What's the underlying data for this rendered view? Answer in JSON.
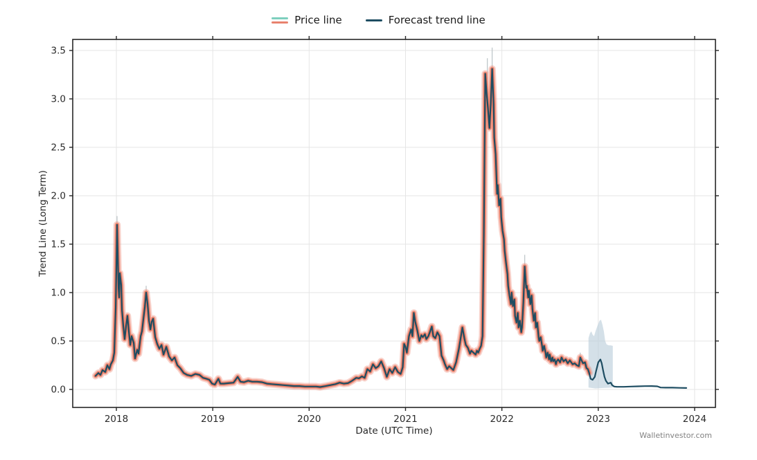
{
  "legend": {
    "items": [
      {
        "label": "Price line",
        "colors": [
          "#7dcfbe",
          "#e8826e"
        ]
      },
      {
        "label": "Forecast trend line",
        "colors": [
          "#1e4d62"
        ]
      }
    ]
  },
  "watermark": "Walletinvestor.com",
  "colors": {
    "price_halo": "#ec8a76",
    "price_core": "#e87a62",
    "trend": "#1e4d62",
    "band_fill": "#b8cbd8",
    "wick": "#bfc7ca",
    "grid": "#e5e5e5",
    "frame": "#262626",
    "tick_text": "#2a2a2a"
  },
  "chart_data": {
    "type": "line",
    "title": "",
    "xlabel": "Date (UTC Time)",
    "ylabel": "Trend Line (Long Term)",
    "xlim": [
      2017.547,
      2024.216
    ],
    "ylim": [
      -0.186,
      3.614
    ],
    "grid": true,
    "legend_position": "top-center",
    "x_tick_values": [
      2018,
      2019,
      2020,
      2021,
      2022,
      2023,
      2024
    ],
    "x_tick_labels": [
      "2018",
      "2019",
      "2020",
      "2021",
      "2022",
      "2023",
      "2024"
    ],
    "y_tick_values": [
      0.0,
      0.5,
      1.0,
      1.5,
      2.0,
      2.5,
      3.0,
      3.5
    ],
    "y_tick_labels": [
      "0.0",
      "0.5",
      "1.0",
      "1.5",
      "2.0",
      "2.5",
      "3.0",
      "3.5"
    ],
    "series": [
      {
        "name": "Price line",
        "color": "#e87a62",
        "points": [
          [
            2017.784,
            0.14
          ],
          [
            2017.813,
            0.17
          ],
          [
            2017.835,
            0.15
          ],
          [
            2017.856,
            0.2
          ],
          [
            2017.885,
            0.18
          ],
          [
            2017.906,
            0.25
          ],
          [
            2017.928,
            0.21
          ],
          [
            2017.942,
            0.26
          ],
          [
            2017.964,
            0.3
          ],
          [
            2017.978,
            0.38
          ],
          [
            2017.993,
            0.85
          ],
          [
            2018.007,
            1.7
          ],
          [
            2018.014,
            1.4
          ],
          [
            2018.022,
            1.05
          ],
          [
            2018.029,
            0.95
          ],
          [
            2018.036,
            1.2
          ],
          [
            2018.05,
            1.08
          ],
          [
            2018.058,
            0.82
          ],
          [
            2018.072,
            0.65
          ],
          [
            2018.086,
            0.52
          ],
          [
            2018.101,
            0.66
          ],
          [
            2018.115,
            0.76
          ],
          [
            2018.129,
            0.6
          ],
          [
            2018.144,
            0.46
          ],
          [
            2018.158,
            0.55
          ],
          [
            2018.18,
            0.48
          ],
          [
            2018.194,
            0.32
          ],
          [
            2018.216,
            0.41
          ],
          [
            2018.23,
            0.37
          ],
          [
            2018.252,
            0.55
          ],
          [
            2018.266,
            0.6
          ],
          [
            2018.281,
            0.73
          ],
          [
            2018.295,
            0.85
          ],
          [
            2018.309,
            1.0
          ],
          [
            2018.324,
            0.88
          ],
          [
            2018.338,
            0.71
          ],
          [
            2018.353,
            0.62
          ],
          [
            2018.367,
            0.7
          ],
          [
            2018.381,
            0.73
          ],
          [
            2018.403,
            0.54
          ],
          [
            2018.424,
            0.47
          ],
          [
            2018.446,
            0.42
          ],
          [
            2018.468,
            0.46
          ],
          [
            2018.489,
            0.36
          ],
          [
            2018.518,
            0.44
          ],
          [
            2018.547,
            0.34
          ],
          [
            2018.576,
            0.3
          ],
          [
            2018.604,
            0.33
          ],
          [
            2018.633,
            0.25
          ],
          [
            2018.662,
            0.22
          ],
          [
            2018.698,
            0.17
          ],
          [
            2018.734,
            0.15
          ],
          [
            2018.777,
            0.14
          ],
          [
            2018.82,
            0.16
          ],
          [
            2018.863,
            0.15
          ],
          [
            2018.899,
            0.12
          ],
          [
            2018.935,
            0.11
          ],
          [
            2018.964,
            0.1
          ],
          [
            2018.993,
            0.06
          ],
          [
            2019.022,
            0.05
          ],
          [
            2019.058,
            0.11
          ],
          [
            2019.079,
            0.06
          ],
          [
            2019.115,
            0.06
          ],
          [
            2019.165,
            0.065
          ],
          [
            2019.216,
            0.07
          ],
          [
            2019.259,
            0.13
          ],
          [
            2019.288,
            0.08
          ],
          [
            2019.324,
            0.075
          ],
          [
            2019.367,
            0.09
          ],
          [
            2019.41,
            0.08
          ],
          [
            2019.46,
            0.08
          ],
          [
            2019.511,
            0.075
          ],
          [
            2019.561,
            0.06
          ],
          [
            2019.612,
            0.055
          ],
          [
            2019.669,
            0.05
          ],
          [
            2019.727,
            0.045
          ],
          [
            2019.784,
            0.04
          ],
          [
            2019.842,
            0.035
          ],
          [
            2019.899,
            0.035
          ],
          [
            2019.957,
            0.03
          ],
          [
            2020.014,
            0.03
          ],
          [
            2020.072,
            0.03
          ],
          [
            2020.115,
            0.025
          ],
          [
            2020.173,
            0.035
          ],
          [
            2020.223,
            0.045
          ],
          [
            2020.273,
            0.055
          ],
          [
            2020.317,
            0.07
          ],
          [
            2020.36,
            0.06
          ],
          [
            2020.403,
            0.065
          ],
          [
            2020.446,
            0.09
          ],
          [
            2020.489,
            0.12
          ],
          [
            2020.518,
            0.115
          ],
          [
            2020.547,
            0.135
          ],
          [
            2020.576,
            0.12
          ],
          [
            2020.604,
            0.21
          ],
          [
            2020.633,
            0.185
          ],
          [
            2020.662,
            0.26
          ],
          [
            2020.691,
            0.22
          ],
          [
            2020.719,
            0.24
          ],
          [
            2020.748,
            0.29
          ],
          [
            2020.777,
            0.22
          ],
          [
            2020.806,
            0.13
          ],
          [
            2020.835,
            0.21
          ],
          [
            2020.863,
            0.17
          ],
          [
            2020.892,
            0.23
          ],
          [
            2020.921,
            0.18
          ],
          [
            2020.95,
            0.16
          ],
          [
            2020.971,
            0.23
          ],
          [
            2020.986,
            0.47
          ],
          [
            2021.0,
            0.44
          ],
          [
            2021.014,
            0.38
          ],
          [
            2021.036,
            0.55
          ],
          [
            2021.058,
            0.62
          ],
          [
            2021.072,
            0.55
          ],
          [
            2021.086,
            0.79
          ],
          [
            2021.101,
            0.7
          ],
          [
            2021.122,
            0.61
          ],
          [
            2021.144,
            0.5
          ],
          [
            2021.165,
            0.56
          ],
          [
            2021.18,
            0.54
          ],
          [
            2021.201,
            0.57
          ],
          [
            2021.216,
            0.52
          ],
          [
            2021.237,
            0.55
          ],
          [
            2021.252,
            0.59
          ],
          [
            2021.273,
            0.65
          ],
          [
            2021.288,
            0.55
          ],
          [
            2021.309,
            0.53
          ],
          [
            2021.331,
            0.59
          ],
          [
            2021.353,
            0.55
          ],
          [
            2021.374,
            0.35
          ],
          [
            2021.396,
            0.3
          ],
          [
            2021.41,
            0.26
          ],
          [
            2021.432,
            0.21
          ],
          [
            2021.453,
            0.24
          ],
          [
            2021.475,
            0.22
          ],
          [
            2021.496,
            0.2
          ],
          [
            2021.525,
            0.28
          ],
          [
            2021.554,
            0.42
          ],
          [
            2021.576,
            0.55
          ],
          [
            2021.59,
            0.64
          ],
          [
            2021.612,
            0.52
          ],
          [
            2021.626,
            0.46
          ],
          [
            2021.647,
            0.43
          ],
          [
            2021.669,
            0.37
          ],
          [
            2021.683,
            0.4
          ],
          [
            2021.705,
            0.38
          ],
          [
            2021.727,
            0.36
          ],
          [
            2021.741,
            0.4
          ],
          [
            2021.755,
            0.38
          ],
          [
            2021.77,
            0.42
          ],
          [
            2021.784,
            0.45
          ],
          [
            2021.799,
            0.55
          ],
          [
            2021.813,
            1.6
          ],
          [
            2021.827,
            3.26
          ],
          [
            2021.842,
            3.05
          ],
          [
            2021.856,
            2.9
          ],
          [
            2021.871,
            2.7
          ],
          [
            2021.885,
            2.95
          ],
          [
            2021.899,
            3.31
          ],
          [
            2021.914,
            2.95
          ],
          [
            2021.921,
            2.6
          ],
          [
            2021.935,
            2.43
          ],
          [
            2021.95,
            2.02
          ],
          [
            2021.957,
            2.11
          ],
          [
            2021.971,
            1.9
          ],
          [
            2021.986,
            1.97
          ],
          [
            2021.993,
            1.78
          ],
          [
            2022.007,
            1.64
          ],
          [
            2022.022,
            1.55
          ],
          [
            2022.029,
            1.43
          ],
          [
            2022.043,
            1.31
          ],
          [
            2022.058,
            1.19
          ],
          [
            2022.065,
            1.07
          ],
          [
            2022.079,
            0.97
          ],
          [
            2022.094,
            0.88
          ],
          [
            2022.101,
            1.0
          ],
          [
            2022.115,
            0.86
          ],
          [
            2022.13,
            0.93
          ],
          [
            2022.137,
            0.76
          ],
          [
            2022.151,
            0.69
          ],
          [
            2022.165,
            0.79
          ],
          [
            2022.173,
            0.64
          ],
          [
            2022.187,
            0.71
          ],
          [
            2022.201,
            0.59
          ],
          [
            2022.209,
            0.64
          ],
          [
            2022.223,
            0.9
          ],
          [
            2022.237,
            1.27
          ],
          [
            2022.252,
            1.05
          ],
          [
            2022.259,
            1.07
          ],
          [
            2022.273,
            0.95
          ],
          [
            2022.281,
            1.02
          ],
          [
            2022.295,
            0.88
          ],
          [
            2022.309,
            0.97
          ],
          [
            2022.317,
            0.83
          ],
          [
            2022.331,
            0.71
          ],
          [
            2022.345,
            0.79
          ],
          [
            2022.353,
            0.64
          ],
          [
            2022.367,
            0.69
          ],
          [
            2022.381,
            0.54
          ],
          [
            2022.388,
            0.5
          ],
          [
            2022.403,
            0.54
          ],
          [
            2022.417,
            0.45
          ],
          [
            2022.424,
            0.4
          ],
          [
            2022.438,
            0.45
          ],
          [
            2022.453,
            0.38
          ],
          [
            2022.46,
            0.33
          ],
          [
            2022.475,
            0.38
          ],
          [
            2022.489,
            0.31
          ],
          [
            2022.496,
            0.36
          ],
          [
            2022.511,
            0.29
          ],
          [
            2022.525,
            0.33
          ],
          [
            2022.532,
            0.29
          ],
          [
            2022.547,
            0.31
          ],
          [
            2022.561,
            0.26
          ],
          [
            2022.568,
            0.29
          ],
          [
            2022.583,
            0.31
          ],
          [
            2022.604,
            0.28
          ],
          [
            2022.619,
            0.33
          ],
          [
            2022.64,
            0.29
          ],
          [
            2022.662,
            0.31
          ],
          [
            2022.683,
            0.27
          ],
          [
            2022.705,
            0.3
          ],
          [
            2022.734,
            0.26
          ],
          [
            2022.755,
            0.27
          ],
          [
            2022.777,
            0.25
          ],
          [
            2022.799,
            0.24
          ],
          [
            2022.813,
            0.33
          ],
          [
            2022.827,
            0.3
          ],
          [
            2022.842,
            0.27
          ],
          [
            2022.863,
            0.28
          ],
          [
            2022.878,
            0.22
          ],
          [
            2022.892,
            0.21
          ],
          [
            2022.906,
            0.17
          ]
        ]
      },
      {
        "name": "Forecast trend line",
        "color": "#1e4d62",
        "note": "trend line overlays the full price history, then continues as forecast",
        "points": [
          [
            2022.906,
            0.17
          ],
          [
            2022.921,
            0.11
          ],
          [
            2022.942,
            0.1
          ],
          [
            2022.964,
            0.13
          ],
          [
            2022.978,
            0.19
          ],
          [
            2023.0,
            0.28
          ],
          [
            2023.022,
            0.31
          ],
          [
            2023.036,
            0.27
          ],
          [
            2023.05,
            0.2
          ],
          [
            2023.065,
            0.13
          ],
          [
            2023.079,
            0.09
          ],
          [
            2023.101,
            0.06
          ],
          [
            2023.115,
            0.065
          ],
          [
            2023.13,
            0.07
          ],
          [
            2023.144,
            0.045
          ],
          [
            2023.165,
            0.03
          ],
          [
            2023.194,
            0.027
          ],
          [
            2023.266,
            0.027
          ],
          [
            2023.338,
            0.03
          ],
          [
            2023.41,
            0.032
          ],
          [
            2023.482,
            0.034
          ],
          [
            2023.554,
            0.035
          ],
          [
            2023.612,
            0.032
          ],
          [
            2023.647,
            0.02
          ],
          [
            2023.698,
            0.018
          ],
          [
            2023.77,
            0.018
          ],
          [
            2023.842,
            0.016
          ],
          [
            2023.914,
            0.015
          ]
        ]
      }
    ],
    "confidence_band": {
      "upper": [
        [
          2022.899,
          0.53
        ],
        [
          2022.914,
          0.58
        ],
        [
          2022.928,
          0.6
        ],
        [
          2022.942,
          0.565
        ],
        [
          2022.957,
          0.55
        ],
        [
          2022.971,
          0.6
        ],
        [
          2022.993,
          0.66
        ],
        [
          2023.014,
          0.71
        ],
        [
          2023.029,
          0.72
        ],
        [
          2023.043,
          0.67
        ],
        [
          2023.058,
          0.6
        ],
        [
          2023.072,
          0.5
        ],
        [
          2023.086,
          0.465
        ],
        [
          2023.108,
          0.455
        ],
        [
          2023.13,
          0.455
        ],
        [
          2023.151,
          0.45
        ]
      ],
      "lower": [
        [
          2023.151,
          0.02
        ],
        [
          2023.05,
          0.015
        ],
        [
          2022.971,
          0.01
        ],
        [
          2022.899,
          0.02
        ]
      ]
    },
    "wicks": [
      [
        2018.007,
        1.6,
        1.79
      ],
      [
        2018.309,
        0.97,
        1.07
      ],
      [
        2021.849,
        3.2,
        3.42
      ],
      [
        2021.899,
        3.25,
        3.53
      ],
      [
        2022.237,
        1.2,
        1.39
      ],
      [
        2022.813,
        0.3,
        0.38
      ]
    ]
  }
}
